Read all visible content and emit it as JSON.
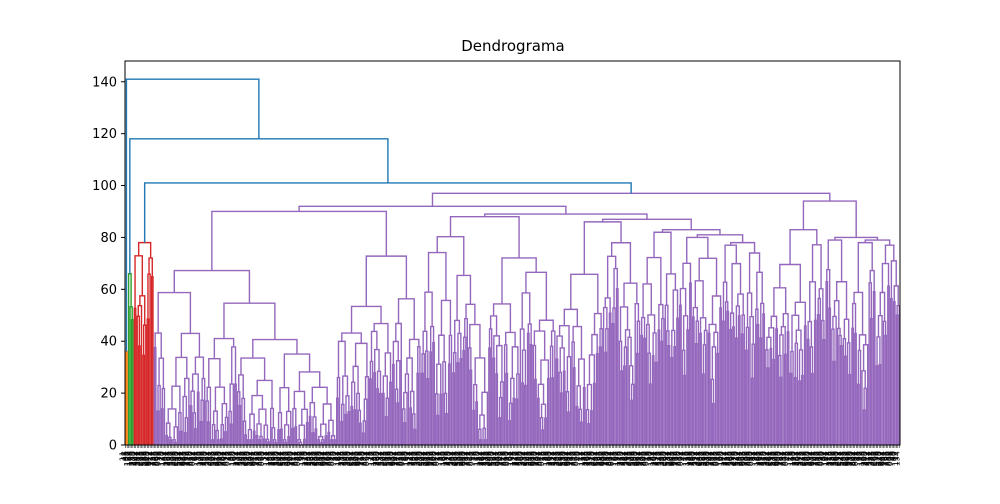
{
  "chart_data": {
    "type": "dendrogram",
    "title": "Dendrograma",
    "xlabel": "",
    "ylabel": "",
    "ylim": [
      0,
      148
    ],
    "yticks": [
      0,
      20,
      40,
      60,
      80,
      100,
      120,
      140
    ],
    "grid": false,
    "legend": "none",
    "colors": {
      "above_threshold": "#1f77b4",
      "cluster_orange": "#ff7f0e",
      "cluster_green": "#2ca02c",
      "cluster_red": "#d62728",
      "cluster_purple": "#9467bd"
    },
    "top_merges": [
      {
        "height": 141,
        "left": "cluster_orange",
        "right": "merge_118"
      },
      {
        "height": 118,
        "left": "cluster_green",
        "right": "merge_101"
      },
      {
        "height": 101,
        "left": "cluster_red",
        "right": "cluster_purple"
      }
    ],
    "clusters": [
      {
        "color": "cluster_orange",
        "merge_height": 36,
        "leaf_share": 0.004
      },
      {
        "color": "cluster_green",
        "merge_height": 66,
        "leaf_share": 0.008
      },
      {
        "color": "cluster_red",
        "merge_height": 78,
        "leaf_share": 0.025
      },
      {
        "color": "cluster_purple",
        "merge_height": 97,
        "leaf_share": 0.963
      }
    ],
    "purple_subtree": {
      "root_height": 97,
      "left_height": 92,
      "right_height": 94,
      "left_inner": [
        90,
        88,
        86,
        82,
        80,
        77,
        73,
        70,
        65,
        63,
        62,
        60,
        58
      ],
      "right_inner": [
        83,
        79,
        78,
        76,
        75,
        72,
        70,
        66,
        62,
        60
      ]
    }
  }
}
